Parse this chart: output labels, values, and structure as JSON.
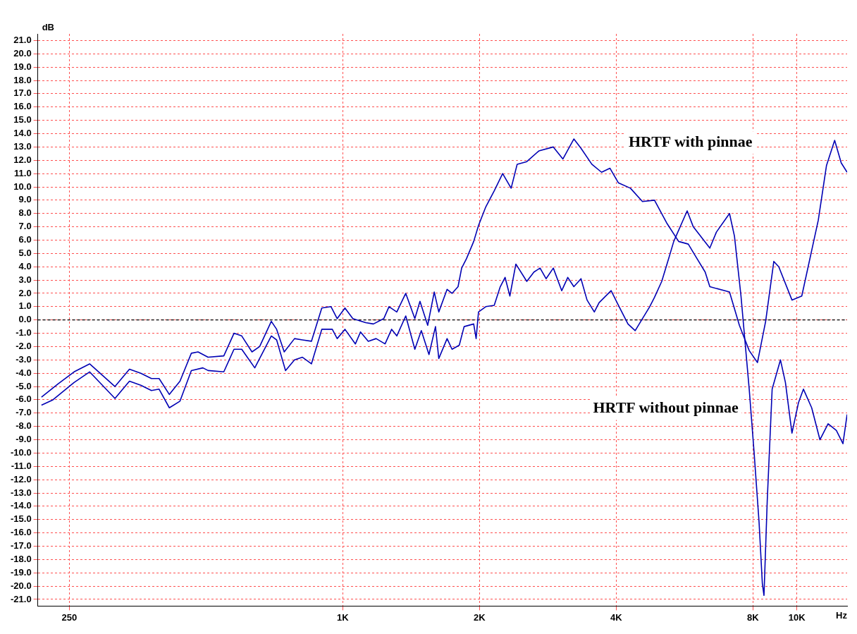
{
  "chart_data": {
    "type": "line",
    "xlabel": "Hz",
    "ylabel": "dB",
    "log": "x",
    "xlim": [
      213,
      12900
    ],
    "xticks": [
      250,
      {
        "value": 1000,
        "label": "1K"
      },
      {
        "value": 2000,
        "label": "2K"
      },
      {
        "value": 4000,
        "label": "4K"
      },
      {
        "value": 8000,
        "label": "8K"
      },
      {
        "value": 10000,
        "label": "10K"
      }
    ],
    "ylim": [
      -21.5,
      21.5
    ],
    "yticks": [
      {
        "value": 21,
        "label": "21.0"
      },
      {
        "value": 20,
        "label": "20.0"
      },
      {
        "value": 19,
        "label": "19.0"
      },
      {
        "value": 18,
        "label": "18.0"
      },
      {
        "value": 17,
        "label": "17.0"
      },
      {
        "value": 16,
        "label": "16.0"
      },
      {
        "value": 15,
        "label": "15.0"
      },
      {
        "value": 14,
        "label": "14.0"
      },
      {
        "value": 13,
        "label": "13.0"
      },
      {
        "value": 12,
        "label": "12.0"
      },
      {
        "value": 11,
        "label": "11.0"
      },
      {
        "value": 10,
        "label": "10.0"
      },
      {
        "value": 9,
        "label": "9.0"
      },
      {
        "value": 8,
        "label": "8.0"
      },
      {
        "value": 7,
        "label": "7.0"
      },
      {
        "value": 6,
        "label": "6.0"
      },
      {
        "value": 5,
        "label": "5.0"
      },
      {
        "value": 4,
        "label": "4.0"
      },
      {
        "value": 3,
        "label": "3.0"
      },
      {
        "value": 2,
        "label": "2.0"
      },
      {
        "value": 1,
        "label": "1.0"
      },
      {
        "value": 0,
        "label": "0.0"
      },
      {
        "value": -1,
        "label": "-1.0"
      },
      {
        "value": -2,
        "label": "-2.0"
      },
      {
        "value": -3,
        "label": "-3.0"
      },
      {
        "value": -4,
        "label": "-4.0"
      },
      {
        "value": -5,
        "label": "-5.0"
      },
      {
        "value": -6,
        "label": "-6.0"
      },
      {
        "value": -7,
        "label": "-7.0"
      },
      {
        "value": -8,
        "label": "-8.0"
      },
      {
        "value": -9,
        "label": "-9.0"
      },
      {
        "value": -10,
        "label": "-10.0"
      },
      {
        "value": -11,
        "label": "-11.0"
      },
      {
        "value": -12,
        "label": "-12.0"
      },
      {
        "value": -13,
        "label": "-13.0"
      },
      {
        "value": -14,
        "label": "-14.0"
      },
      {
        "value": -15,
        "label": "-15.0"
      },
      {
        "value": -16,
        "label": "-16.0"
      },
      {
        "value": -17,
        "label": "-17.0"
      },
      {
        "value": -18,
        "label": "-18.0"
      },
      {
        "value": -19,
        "label": "-19.0"
      },
      {
        "value": -20,
        "label": "-20.0"
      },
      {
        "value": -21,
        "label": "-21.0"
      }
    ],
    "grid": true,
    "legend": false,
    "marker": "none",
    "line_style": "solid",
    "ref_lines": [
      {
        "axis": "y",
        "value": 0,
        "label": null,
        "color": "#000000",
        "line_style": "dashed"
      }
    ],
    "series": [
      {
        "name": "HRTF with pinnae",
        "color": "#0000b4",
        "x": [
          217,
          236,
          256,
          277,
          315,
          339,
          359,
          379,
          394,
          415,
          438,
          464,
          480,
          505,
          547,
          576,
          599,
          631,
          656,
          696,
          715,
          743,
          783,
          815,
          853,
          899,
          942,
          972,
          1011,
          1052,
          1123,
          1168,
          1231,
          1264,
          1315,
          1376,
          1441,
          1479,
          1538,
          1590,
          1627,
          1697,
          1740,
          1794,
          1827,
          1872,
          1942,
          1990,
          2065,
          2155,
          2249,
          2348,
          2421,
          2542,
          2702,
          2908,
          3053,
          3227,
          3346,
          3535,
          3714,
          3876,
          4045,
          4299,
          4569,
          4857,
          5165,
          5490,
          5765,
          5979,
          6280,
          6430,
          7105,
          7470,
          7852,
          8187,
          8534,
          8895,
          9120,
          9752,
          10250,
          11145,
          11617,
          12109,
          12519,
          12900
        ],
        "values": [
          -5.8,
          -4.8,
          -3.9,
          -3.3,
          -5.0,
          -3.7,
          -4.0,
          -4.4,
          -4.4,
          -5.6,
          -4.6,
          -2.5,
          -2.4,
          -2.8,
          -2.7,
          -1.0,
          -1.2,
          -2.4,
          -2.0,
          -0.1,
          -0.7,
          -2.4,
          -1.4,
          -1.5,
          -1.6,
          0.9,
          1.0,
          0.1,
          0.9,
          0.1,
          -0.2,
          -0.3,
          0.1,
          1.0,
          0.6,
          2.0,
          0.1,
          1.4,
          -0.4,
          2.1,
          0.6,
          2.3,
          2.0,
          2.5,
          3.9,
          4.6,
          5.9,
          7.1,
          8.5,
          9.7,
          11.0,
          9.9,
          11.7,
          11.9,
          12.7,
          13.0,
          12.1,
          13.6,
          12.9,
          11.7,
          11.1,
          11.4,
          10.3,
          9.9,
          8.9,
          9.0,
          7.3,
          5.9,
          5.7,
          4.8,
          3.6,
          2.5,
          2.1,
          -0.4,
          -2.3,
          -3.2,
          -0.1,
          4.4,
          4.0,
          1.5,
          1.8,
          7.5,
          11.6,
          13.5,
          11.8,
          11.1
        ]
      },
      {
        "name": "HRTF without pinnae",
        "color": "#0000b4",
        "x": [
          217,
          230,
          256,
          277,
          315,
          339,
          359,
          379,
          394,
          415,
          438,
          464,
          492,
          505,
          547,
          576,
          599,
          640,
          696,
          715,
          748,
          783,
          815,
          853,
          899,
          948,
          972,
          1011,
          1066,
          1094,
          1138,
          1184,
          1239,
          1281,
          1315,
          1376,
          1441,
          1489,
          1548,
          1600,
          1627,
          1697,
          1740,
          1805,
          1850,
          1942,
          1966,
          1990,
          2065,
          2155,
          2222,
          2277,
          2333,
          2405,
          2542,
          2636,
          2719,
          2803,
          2908,
          3035,
          3129,
          3227,
          3346,
          3450,
          3580,
          3668,
          3898,
          4045,
          4246,
          4404,
          4569,
          4741,
          4857,
          5039,
          5228,
          5355,
          5732,
          5913,
          6430,
          6648,
          7105,
          7286,
          7531,
          7852,
          8050,
          8254,
          8392,
          8462,
          8603,
          8820,
          9200,
          9434,
          9752,
          10083,
          10337,
          10778,
          11237,
          11713,
          12215,
          12629,
          12900
        ],
        "values": [
          -6.4,
          -6.0,
          -4.7,
          -3.9,
          -5.9,
          -4.6,
          -4.9,
          -5.3,
          -5.2,
          -6.6,
          -6.1,
          -3.8,
          -3.6,
          -3.8,
          -3.9,
          -2.2,
          -2.2,
          -3.6,
          -1.2,
          -1.5,
          -3.8,
          -3.0,
          -2.8,
          -3.3,
          -0.7,
          -0.7,
          -1.4,
          -0.7,
          -1.8,
          -0.9,
          -1.6,
          -1.4,
          -1.8,
          -0.7,
          -1.2,
          0.3,
          -2.2,
          -0.8,
          -2.6,
          -0.5,
          -2.9,
          -1.4,
          -2.2,
          -1.9,
          -0.5,
          -0.3,
          -1.4,
          0.6,
          1.0,
          1.1,
          2.5,
          3.2,
          1.8,
          4.2,
          2.9,
          3.6,
          3.9,
          3.1,
          3.9,
          2.2,
          3.2,
          2.5,
          3.1,
          1.5,
          0.6,
          1.3,
          2.2,
          1.1,
          -0.3,
          -0.8,
          0.1,
          1.0,
          1.7,
          2.9,
          4.7,
          5.9,
          8.2,
          7.0,
          5.4,
          6.6,
          8.0,
          6.3,
          1.8,
          -5.2,
          -10.0,
          -15.2,
          -19.8,
          -20.7,
          -13.6,
          -5.2,
          -3.0,
          -4.7,
          -8.5,
          -6.2,
          -5.2,
          -6.6,
          -9.0,
          -7.8,
          -8.3,
          -9.3,
          -7.1
        ]
      }
    ]
  }
}
